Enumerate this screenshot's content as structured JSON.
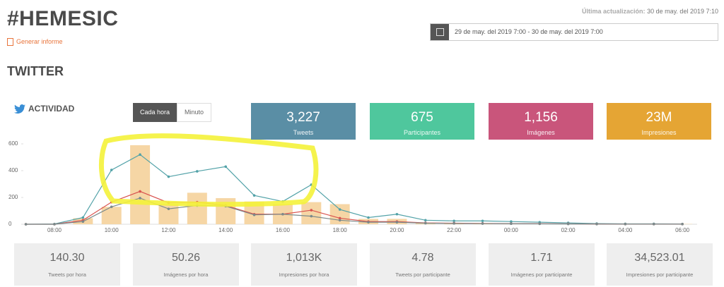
{
  "header": {
    "title": "#HEMESIC",
    "report_link": "Generar informe",
    "last_update_label": "Última actualización:",
    "last_update": "30 de may. del 2019 7:10",
    "date_range": "29 de may. del 2019 7:00 - 30 de may. del 2019 7:00"
  },
  "section_title": "TWITTER",
  "activity": {
    "title": "ACTIVIDAD",
    "toggle": [
      "Cada hora",
      "Minuto"
    ]
  },
  "stat_cards": [
    {
      "value": "3,227",
      "label": "Tweets",
      "color": "#5a8ea5"
    },
    {
      "value": "675",
      "label": "Participantes",
      "color": "#4fc79d"
    },
    {
      "value": "1,156",
      "label": "Imágenes",
      "color": "#c9557b"
    },
    {
      "value": "23M",
      "label": "Impresiones",
      "color": "#e5a534"
    }
  ],
  "metrics": [
    {
      "value": "140.30",
      "label": "Tweets por hora"
    },
    {
      "value": "50.26",
      "label": "Imágenes por hora"
    },
    {
      "value": "1,013K",
      "label": "Impresiones por hora"
    },
    {
      "value": "4.78",
      "label": "Tweets por participante"
    },
    {
      "value": "1.71",
      "label": "Imágenes por participante"
    },
    {
      "value": "34,523.01",
      "label": "Impresiones por participante"
    }
  ],
  "chart_data": {
    "type": "combo",
    "categories": [
      null,
      "08:00",
      null,
      "10:00",
      null,
      "12:00",
      null,
      "14:00",
      null,
      "16:00",
      null,
      "18:00",
      null,
      "20:00",
      null,
      "22:00",
      null,
      "00:00",
      null,
      "02:00",
      null,
      "04:00",
      null,
      "06:00"
    ],
    "series": [
      {
        "kind": "bar",
        "color": "#f6d6a5",
        "values": [
          0,
          0,
          45,
          130,
          590,
          150,
          235,
          195,
          170,
          150,
          165,
          150,
          40,
          40,
          10,
          10,
          5,
          5,
          5,
          5,
          3,
          2,
          2,
          2
        ]
      },
      {
        "kind": "line",
        "color": "#52a2a8",
        "values": [
          0,
          2,
          50,
          405,
          520,
          355,
          395,
          430,
          215,
          170,
          295,
          110,
          50,
          75,
          30,
          25,
          25,
          20,
          15,
          10,
          5,
          3,
          3,
          2
        ]
      },
      {
        "kind": "line",
        "color": "#d9534f",
        "values": [
          0,
          0,
          30,
          165,
          245,
          160,
          165,
          140,
          75,
          75,
          105,
          45,
          20,
          20,
          10,
          8,
          6,
          5,
          4,
          3,
          2,
          1,
          1,
          1
        ]
      },
      {
        "kind": "line",
        "color": "#7b8a8b",
        "values": [
          0,
          0,
          20,
          130,
          195,
          115,
          140,
          135,
          70,
          75,
          60,
          30,
          15,
          15,
          8,
          6,
          5,
          4,
          3,
          2,
          1,
          1,
          1,
          1
        ]
      }
    ],
    "ylim": [
      0,
      600
    ],
    "yticks": [
      0,
      200,
      400,
      600
    ]
  }
}
